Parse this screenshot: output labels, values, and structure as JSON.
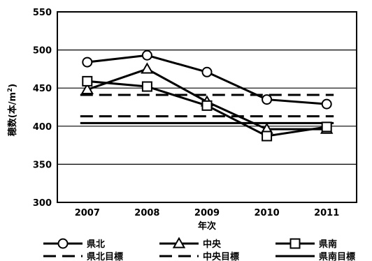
{
  "chart_data": {
    "type": "line",
    "title": "",
    "xlabel": "年次",
    "ylabel_main": "穂数(本/m",
    "ylabel_sup": "2",
    "ylabel_close": ")",
    "categories": [
      "2007",
      "2008",
      "2009",
      "2010",
      "2011"
    ],
    "ylim": [
      300,
      550
    ],
    "yticks": [
      "300",
      "350",
      "400",
      "450",
      "500",
      "550"
    ],
    "grid": true,
    "legend_position": "bottom",
    "series": [
      {
        "name": "県北",
        "values": [
          484,
          493,
          471,
          435,
          429
        ],
        "marker": "circle",
        "style": "solid"
      },
      {
        "name": "中央",
        "values": [
          448,
          475,
          432,
          396,
          396
        ],
        "marker": "triangle",
        "style": "solid"
      },
      {
        "name": "県南",
        "values": [
          459,
          452,
          427,
          387,
          399
        ],
        "marker": "square",
        "style": "solid"
      }
    ],
    "targets": [
      {
        "name": "県北目標",
        "value": 441,
        "style": "dashed-long"
      },
      {
        "name": "中央目標",
        "value": 413,
        "style": "dashed-long"
      },
      {
        "name": "県南目標",
        "value": 404,
        "style": "solid"
      }
    ]
  }
}
